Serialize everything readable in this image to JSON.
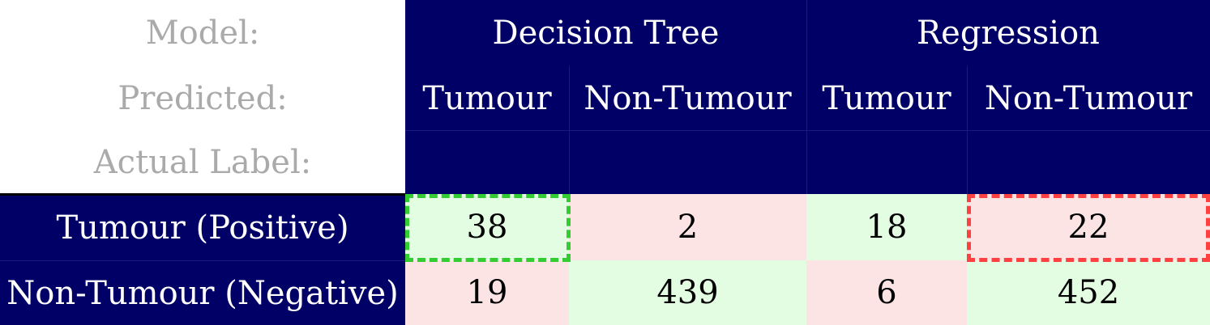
{
  "header_labels": {
    "model": "Model:",
    "predicted": "Predicted:",
    "actual": "Actual Label:"
  },
  "colors": {
    "header": "#000066",
    "correct": "#e3fde3",
    "incorrect": "#fde4e4",
    "highlight_good": "#33cc33",
    "highlight_bad": "#ff4040"
  },
  "chart_data": {
    "type": "table",
    "models": [
      "Decision Tree",
      "Regression"
    ],
    "predicted": [
      "Tumour",
      "Non-Tumour",
      "Tumour",
      "Non-Tumour"
    ],
    "rows": [
      {
        "label": "Tumour (Positive)",
        "values": [
          "38",
          "2",
          "18",
          "22"
        ]
      },
      {
        "label": "Non-Tumour (Negative)",
        "values": [
          "19",
          "439",
          "6",
          "452"
        ]
      }
    ],
    "highlights": [
      {
        "row": 0,
        "col": 0,
        "style": "green-dashed"
      },
      {
        "row": 0,
        "col": 3,
        "style": "red-dashed"
      }
    ]
  }
}
